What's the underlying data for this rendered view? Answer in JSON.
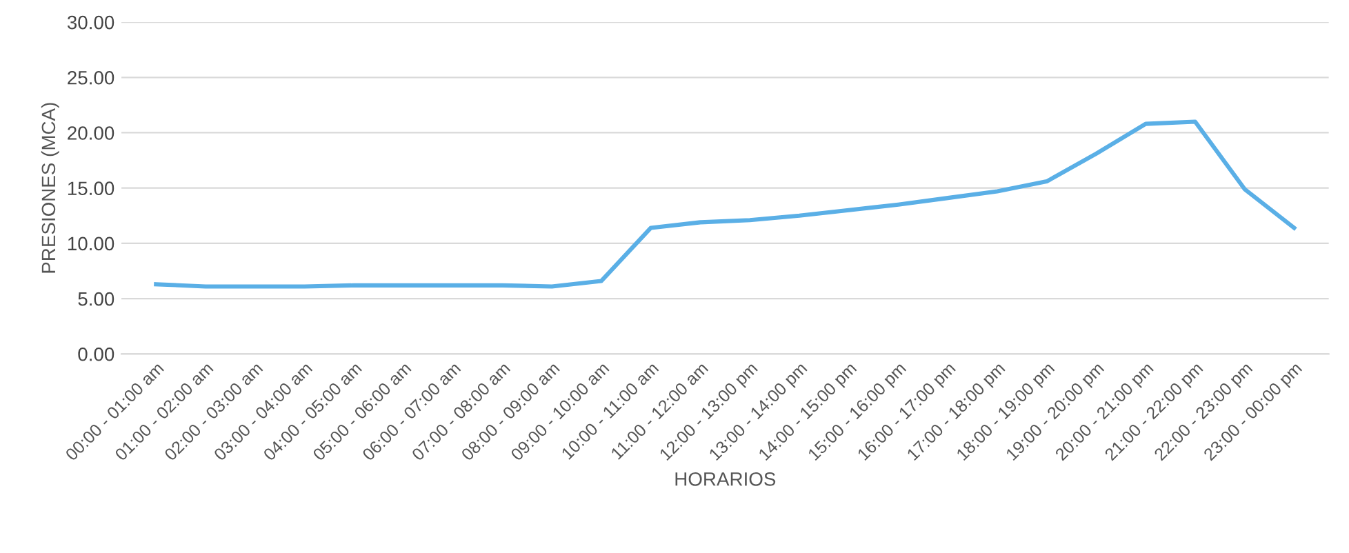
{
  "chart_data": {
    "type": "line",
    "xlabel": "HORARIOS",
    "ylabel": "PRESIONES (MCA)",
    "categories": [
      "00:00 - 01:00 am",
      "01:00 - 02:00 am",
      "02:00 - 03:00 am",
      "03:00 - 04:00 am",
      "04:00 - 05:00 am",
      "05:00 - 06:00 am",
      "06:00 - 07:00 am",
      "07:00 - 08:00 am",
      "08:00 - 09:00 am",
      "09:00 - 10:00 am",
      "10:00 - 11:00 am",
      "11:00 - 12:00 am",
      "12:00 - 13:00 pm",
      "13:00 - 14:00 pm",
      "14:00 - 15:00 pm",
      "15:00 - 16:00 pm",
      "16:00 - 17:00 pm",
      "17:00 - 18:00 pm",
      "18:00 - 19:00 pm",
      "19:00 - 20:00 pm",
      "20:00 - 21:00 pm",
      "21:00 - 22:00 pm",
      "22:00 - 23:00 pm",
      "23:00 - 00:00 pm"
    ],
    "series": [
      {
        "color": "#5aafe6",
        "values": [
          6.3,
          6.1,
          6.1,
          6.1,
          6.2,
          6.2,
          6.2,
          6.2,
          6.1,
          6.6,
          11.4,
          11.9,
          12.1,
          12.5,
          13.0,
          13.5,
          14.1,
          14.7,
          15.6,
          18.1,
          20.8,
          21.0,
          14.9,
          11.4
        ]
      }
    ],
    "ylim": [
      0,
      30
    ],
    "yticks": [
      {
        "value": 0,
        "label": "0.00"
      },
      {
        "value": 5,
        "label": "5.00"
      },
      {
        "value": 10,
        "label": "10.00"
      },
      {
        "value": 15,
        "label": "15.00"
      },
      {
        "value": 20,
        "label": "20.00"
      },
      {
        "value": 25,
        "label": "25.00"
      },
      {
        "value": 30,
        "label": "30.00"
      }
    ],
    "grid": "y",
    "legend": false,
    "marker": "none",
    "line_style": "solid"
  }
}
